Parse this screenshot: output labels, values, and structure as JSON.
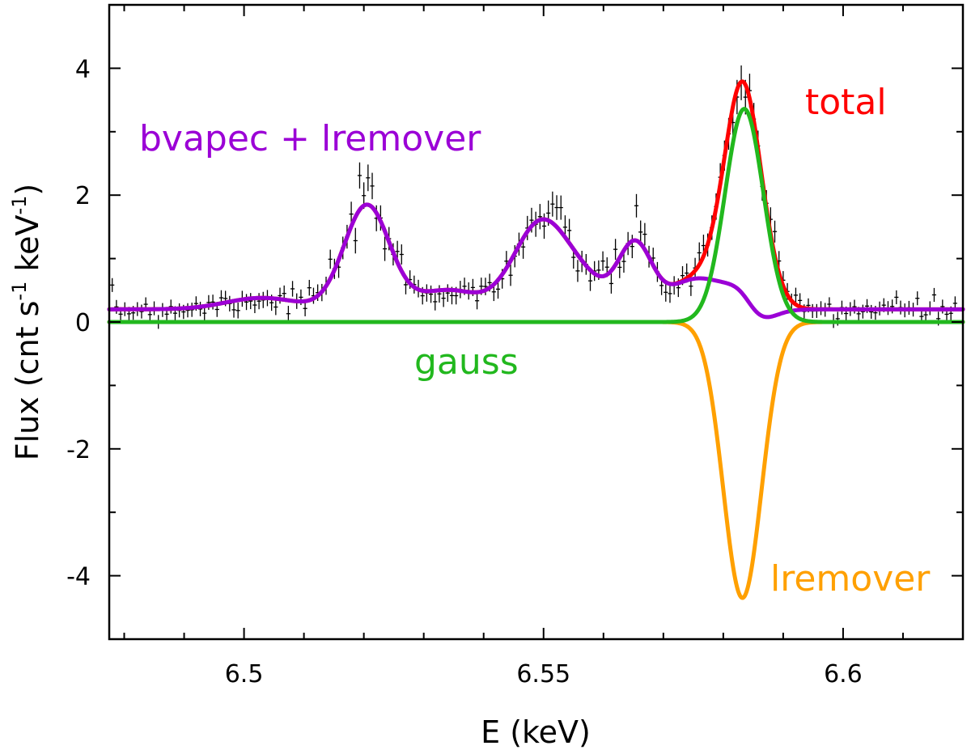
{
  "chart_data": {
    "type": "line",
    "xlabel": "E (keV)",
    "ylabel": "Flux (cnt s-1 keV-1)",
    "ylabel_parts": {
      "main": "Flux (cnt s",
      "sup1": "-1",
      "mid": " keV",
      "sup2": "-1",
      "end": ")"
    },
    "xlim": [
      6.4775,
      6.62
    ],
    "ylim": [
      -5,
      5
    ],
    "xticks": [
      6.5,
      6.55,
      6.6
    ],
    "xtick_labels": [
      "6.5",
      "6.55",
      "6.6"
    ],
    "yticks": [
      -4,
      -2,
      0,
      2,
      4
    ],
    "ytick_labels": [
      "-4",
      "-2",
      "0",
      "2",
      "4"
    ],
    "grid": false,
    "series": [
      {
        "name": "total",
        "color": "#ff0000"
      },
      {
        "name": "bvapec + lremover",
        "color": "#9b00d6"
      },
      {
        "name": "gauss",
        "color": "#22b81e"
      },
      {
        "name": "lremover",
        "color": "#ffa000"
      }
    ],
    "model": {
      "bvapec": {
        "baseline": 0.2,
        "lines": [
          {
            "center": 6.503,
            "amp": 0.18,
            "sigma": 0.006
          },
          {
            "center": 6.5205,
            "amp": 1.64,
            "sigma": 0.0038
          },
          {
            "center": 6.534,
            "amp": 0.3,
            "sigma": 0.005
          },
          {
            "center": 6.5495,
            "amp": 1.35,
            "sigma": 0.0045
          },
          {
            "center": 6.557,
            "amp": 0.35,
            "sigma": 0.004
          },
          {
            "center": 6.5653,
            "amp": 1.02,
            "sigma": 0.0028
          },
          {
            "center": 6.575,
            "amp": 0.45,
            "sigma": 0.004
          },
          {
            "center": 6.5832,
            "amp": 0.2,
            "sigma": 0.002
          },
          {
            "center": 6.583,
            "amp": 4.35,
            "sigma": 0.0032
          }
        ]
      },
      "gauss": {
        "center": 6.5835,
        "amp": 3.36,
        "sigma": 0.0032
      },
      "lremover": {
        "center": 6.5832,
        "amp": -4.35,
        "sigma": 0.0032
      }
    },
    "data_points": {
      "x_start": 6.478,
      "x_end": 6.619,
      "step": 0.0007,
      "x_error": 0.00035,
      "noise_seed": 7
    }
  }
}
